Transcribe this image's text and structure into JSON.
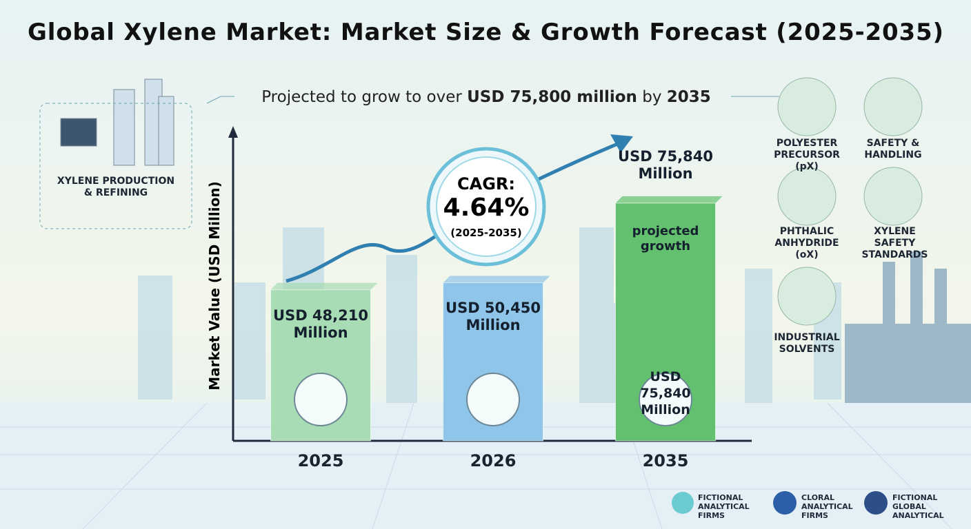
{
  "chart_data": {
    "type": "bar",
    "title": "Global Xylene Market: Market Size & Growth Forecast (2025-2035)",
    "subtitle": [
      "Projected to grow to over ",
      "USD 75,800 million",
      " by ",
      "2035"
    ],
    "y_label": "Market Value (USD Million)",
    "categories": [
      "2025",
      "2026",
      "2035"
    ],
    "values": [
      48210,
      50450,
      75840
    ],
    "value_labels": [
      "USD 48,210 Million",
      "USD 50,450 Million",
      "USD 75,840 Million"
    ],
    "colors": [
      "#a8dcb4",
      "#8ec5e8",
      "#62c06e"
    ],
    "ylim": [
      0,
      100000
    ],
    "cagr": {
      "label": "CAGR:",
      "value": "4.64%",
      "period": "(2025-2035)"
    },
    "bar_note": "projected growth",
    "side_labels": [
      "XYLENE PRODUCTION & REFINING",
      "POLYESTER PRECURSOR (pX)",
      "SAFETY & HANDLING",
      "PHTHALIC ANHYDRIDE (oX)",
      "XYLENE SAFETY STANDARDS",
      "INDUSTRIAL SOLVENTS"
    ],
    "logos": [
      "FICTIONAL ANALYTICAL FIRMS",
      "CLORAL ANALYTICAL FIRMS",
      "FICTIONAL GLOBAL ANALYTICAL"
    ]
  }
}
